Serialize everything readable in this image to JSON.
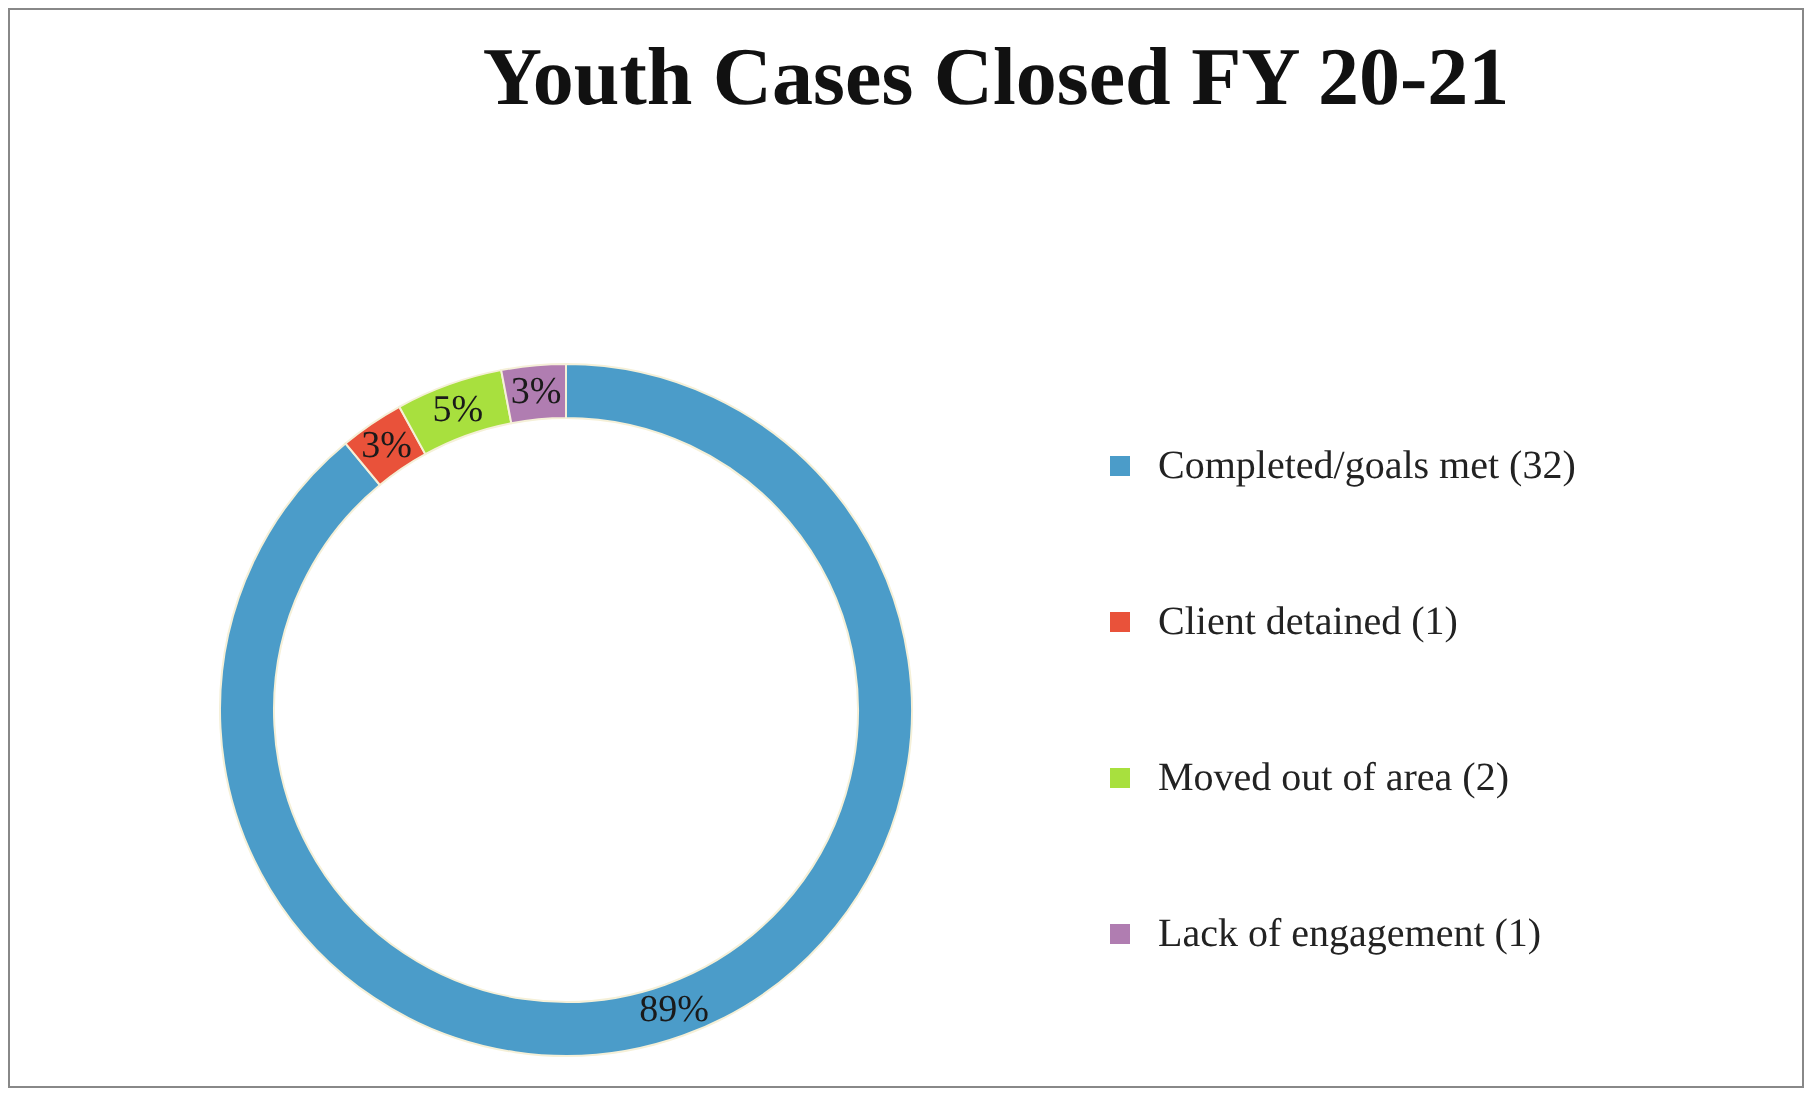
{
  "chart_data": {
    "type": "donut",
    "title": "Youth Cases Closed FY 20-21",
    "categories": [
      "Completed/goals met (32)",
      "Client detained (1)",
      "Moved out of area (2)",
      "Lack of engagement (1)"
    ],
    "values": [
      89,
      3,
      5,
      3
    ],
    "colors": [
      "#4b9cc9",
      "#e9523a",
      "#a8e03e",
      "#b07db1"
    ],
    "value_labels": [
      "89%",
      "3%",
      "5%",
      "3%"
    ],
    "legend": "right"
  }
}
